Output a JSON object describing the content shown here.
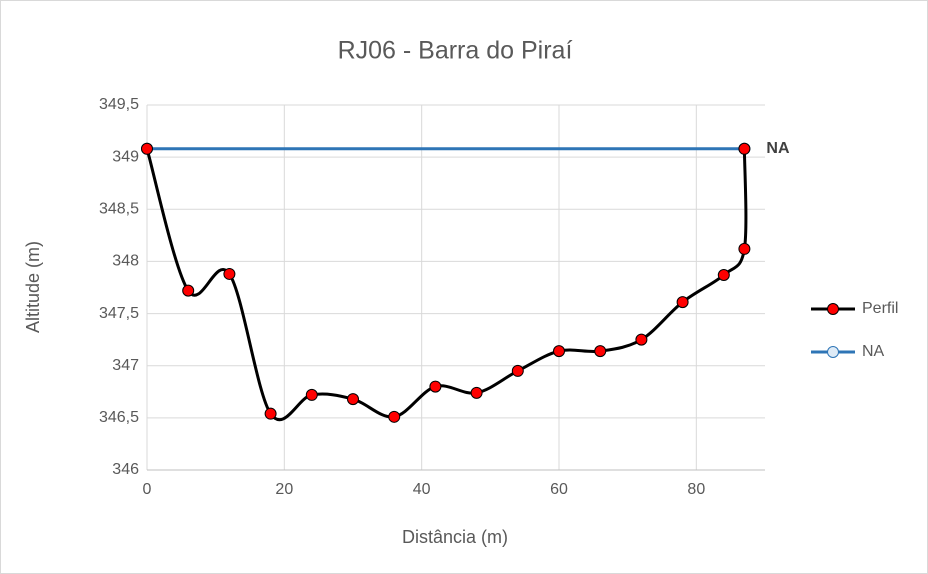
{
  "chart_data": {
    "type": "scatter",
    "title": "RJ06 - Barra do Piraí",
    "xlabel": "Distância (m)",
    "ylabel": "Altitude (m)",
    "xlim": [
      0,
      90
    ],
    "xticks": [
      0,
      20,
      40,
      60,
      80
    ],
    "ylim": [
      346,
      349.5
    ],
    "yticks": [
      346,
      {
        "value": 346.5,
        "label": "346,5"
      },
      347,
      {
        "value": 347.5,
        "label": "347,5"
      },
      348,
      {
        "value": 348.5,
        "label": "348,5"
      },
      349,
      {
        "value": 349.5,
        "label": "349,5"
      }
    ],
    "grid": true,
    "smooth": true,
    "legend": "right",
    "series": [
      {
        "name": "Perfil",
        "color": "#000000",
        "marker_color": "#ff0000",
        "x": [
          0,
          6,
          12,
          18,
          24,
          30,
          36,
          42,
          48,
          54,
          60,
          66,
          72,
          78,
          84,
          87,
          87
        ],
        "values": [
          349.08,
          347.72,
          347.88,
          346.54,
          346.72,
          346.68,
          346.51,
          346.8,
          346.74,
          346.95,
          347.14,
          347.14,
          347.25,
          347.61,
          347.87,
          348.12,
          349.08
        ]
      },
      {
        "name": "NA",
        "color": "#2e75b6",
        "marker_color": "#deebf7",
        "x": [
          0,
          87
        ],
        "values": [
          349.08,
          349.08
        ]
      }
    ],
    "annotations": [
      {
        "text": "NA",
        "x": 87,
        "y": 349.08
      }
    ]
  }
}
